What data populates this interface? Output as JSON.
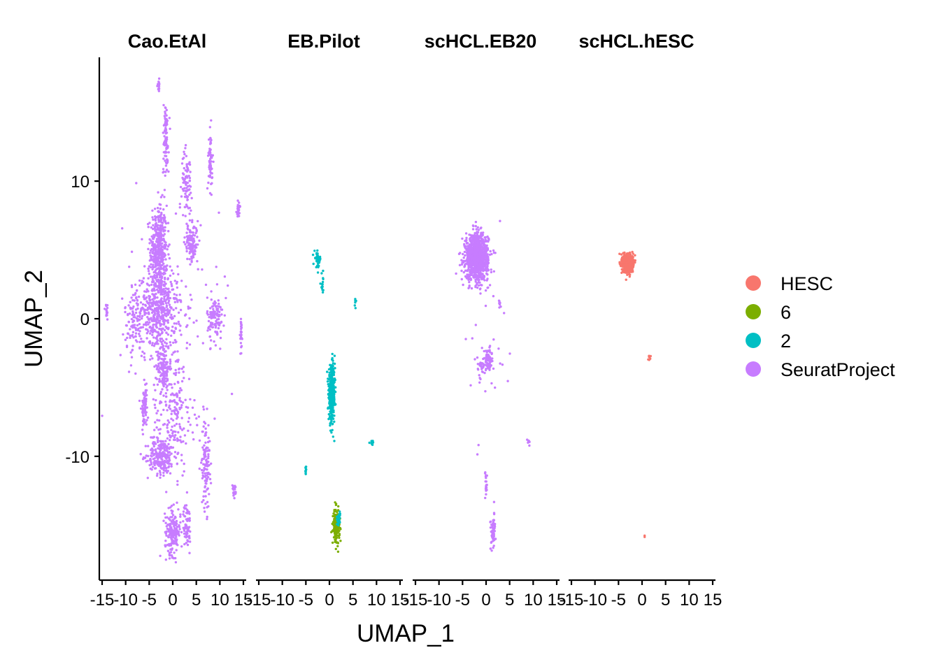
{
  "colors": {
    "HESC": "#F8766D",
    "6": "#7CAE00",
    "2": "#00BFC4",
    "SeuratProject": "#C77CFF"
  },
  "chart_data": {
    "type": "scatter",
    "xlabel": "UMAP_1",
    "ylabel": "UMAP_2",
    "xlim": [
      -15,
      15
    ],
    "ylim": [
      -19,
      19
    ],
    "x_ticks": [
      -15,
      -10,
      -5,
      0,
      5,
      10,
      15
    ],
    "x_tick_labels": [
      "-15",
      "-10",
      "-5",
      "0",
      "5",
      "10",
      "15"
    ],
    "y_ticks": [
      10,
      0,
      -10
    ],
    "y_tick_labels": [
      "10",
      "0",
      "-10"
    ],
    "legend": {
      "position": "right",
      "entries": [
        "HESC",
        "6",
        "2",
        "SeuratProject"
      ]
    },
    "facets": [
      {
        "title": "Cao.EtAl",
        "clusters": [
          {
            "group": "SeuratProject",
            "cx": -3.0,
            "cy": 5.0,
            "sx": 1.6,
            "sy": 3.0,
            "n": 420
          },
          {
            "group": "SeuratProject",
            "cx": -3.0,
            "cy": 0.5,
            "sx": 3.5,
            "sy": 2.5,
            "n": 420
          },
          {
            "group": "SeuratProject",
            "cx": -2.0,
            "cy": -3.5,
            "sx": 1.2,
            "sy": 1.5,
            "n": 120
          },
          {
            "group": "SeuratProject",
            "cx": -2.5,
            "cy": -10.0,
            "sx": 2.5,
            "sy": 1.2,
            "n": 220
          },
          {
            "group": "SeuratProject",
            "cx": 0.0,
            "cy": -15.5,
            "sx": 1.5,
            "sy": 1.5,
            "n": 180
          },
          {
            "group": "SeuratProject",
            "cx": 4.0,
            "cy": 5.5,
            "sx": 1.2,
            "sy": 1.2,
            "n": 120
          },
          {
            "group": "SeuratProject",
            "cx": 8.0,
            "cy": 11.5,
            "sx": 0.4,
            "sy": 2.0,
            "n": 60
          },
          {
            "group": "SeuratProject",
            "cx": -6.0,
            "cy": -6.5,
            "sx": 0.5,
            "sy": 1.3,
            "n": 80
          },
          {
            "group": "SeuratProject",
            "cx": 7.0,
            "cy": -10.5,
            "sx": 0.8,
            "sy": 3.0,
            "n": 110
          },
          {
            "group": "SeuratProject",
            "cx": 3.0,
            "cy": -15.0,
            "sx": 0.7,
            "sy": 1.5,
            "n": 70
          },
          {
            "group": "SeuratProject",
            "cx": 9.0,
            "cy": 0.0,
            "sx": 1.5,
            "sy": 1.5,
            "n": 110
          },
          {
            "group": "SeuratProject",
            "cx": -8.0,
            "cy": 0.0,
            "sx": 2.0,
            "sy": 2.5,
            "n": 110
          },
          {
            "group": "SeuratProject",
            "cx": -1.5,
            "cy": 13.0,
            "sx": 0.6,
            "sy": 2.5,
            "n": 90
          },
          {
            "group": "SeuratProject",
            "cx": 3.0,
            "cy": 10.0,
            "sx": 1.0,
            "sy": 2.0,
            "n": 80
          },
          {
            "group": "SeuratProject",
            "cx": 0.0,
            "cy": -7.0,
            "sx": 4.0,
            "sy": 4.0,
            "n": 200
          },
          {
            "group": "SeuratProject",
            "cx": 0.0,
            "cy": 0.0,
            "sx": 9.0,
            "sy": 7.5,
            "n": 160
          },
          {
            "group": "SeuratProject",
            "cx": -3.0,
            "cy": 17.0,
            "sx": 0.2,
            "sy": 0.4,
            "n": 20
          },
          {
            "group": "SeuratProject",
            "cx": 13.0,
            "cy": -12.5,
            "sx": 0.3,
            "sy": 0.4,
            "n": 25
          },
          {
            "group": "SeuratProject",
            "cx": 14.0,
            "cy": 8.0,
            "sx": 0.4,
            "sy": 0.5,
            "n": 25
          },
          {
            "group": "SeuratProject",
            "cx": -14.0,
            "cy": 0.5,
            "sx": 0.3,
            "sy": 0.5,
            "n": 15
          },
          {
            "group": "SeuratProject",
            "cx": 14.5,
            "cy": -1.0,
            "sx": 0.2,
            "sy": 1.5,
            "n": 30
          }
        ]
      },
      {
        "title": "EB.Pilot",
        "clusters": [
          {
            "group": "2",
            "cx": 0.5,
            "cy": -5.5,
            "sx": 0.6,
            "sy": 1.8,
            "n": 420
          },
          {
            "group": "2",
            "cx": -2.5,
            "cy": 4.3,
            "sx": 0.6,
            "sy": 0.5,
            "n": 40
          },
          {
            "group": "2",
            "cx": -1.5,
            "cy": 2.5,
            "sx": 0.3,
            "sy": 0.7,
            "n": 15
          },
          {
            "group": "2",
            "cx": -5.0,
            "cy": -11.0,
            "sx": 0.2,
            "sy": 0.3,
            "n": 10
          },
          {
            "group": "2",
            "cx": 9.0,
            "cy": -9.0,
            "sx": 0.4,
            "sy": 0.2,
            "n": 8
          },
          {
            "group": "2",
            "cx": 5.5,
            "cy": 1.2,
            "sx": 0.2,
            "sy": 0.3,
            "n": 6
          },
          {
            "group": "6",
            "cx": 1.5,
            "cy": -15.0,
            "sx": 0.6,
            "sy": 1.0,
            "n": 200
          },
          {
            "group": "2",
            "cx": 2.0,
            "cy": -14.5,
            "sx": 0.3,
            "sy": 0.5,
            "n": 25
          }
        ]
      },
      {
        "title": "scHCL.EB20",
        "clusters": [
          {
            "group": "SeuratProject",
            "cx": -2.0,
            "cy": 4.5,
            "sx": 2.2,
            "sy": 1.5,
            "n": 1100
          },
          {
            "group": "SeuratProject",
            "cx": 0.5,
            "cy": -3.0,
            "sx": 0.6,
            "sy": 0.8,
            "n": 60
          },
          {
            "group": "SeuratProject",
            "cx": -1.0,
            "cy": -3.5,
            "sx": 0.8,
            "sy": 0.6,
            "n": 30
          },
          {
            "group": "SeuratProject",
            "cx": 1.5,
            "cy": -15.5,
            "sx": 0.5,
            "sy": 1.2,
            "n": 60
          },
          {
            "group": "SeuratProject",
            "cx": 0.0,
            "cy": -12.0,
            "sx": 0.2,
            "sy": 0.8,
            "n": 20
          },
          {
            "group": "SeuratProject",
            "cx": 9.0,
            "cy": -9.0,
            "sx": 0.3,
            "sy": 0.3,
            "n": 8
          },
          {
            "group": "SeuratProject",
            "cx": 3.0,
            "cy": 1.0,
            "sx": 0.3,
            "sy": 0.4,
            "n": 8
          },
          {
            "group": "SeuratProject",
            "cx": 0.0,
            "cy": -2.0,
            "sx": 4.0,
            "sy": 6.0,
            "n": 30
          }
        ]
      },
      {
        "title": "scHCL.hESC",
        "clusters": [
          {
            "group": "HESC",
            "cx": -3.0,
            "cy": 4.0,
            "sx": 1.0,
            "sy": 0.6,
            "n": 520
          },
          {
            "group": "HESC",
            "cx": 1.5,
            "cy": -2.8,
            "sx": 0.2,
            "sy": 0.2,
            "n": 8
          },
          {
            "group": "HESC",
            "cx": 0.5,
            "cy": -15.8,
            "sx": 0.1,
            "sy": 0.1,
            "n": 2
          }
        ]
      }
    ]
  }
}
